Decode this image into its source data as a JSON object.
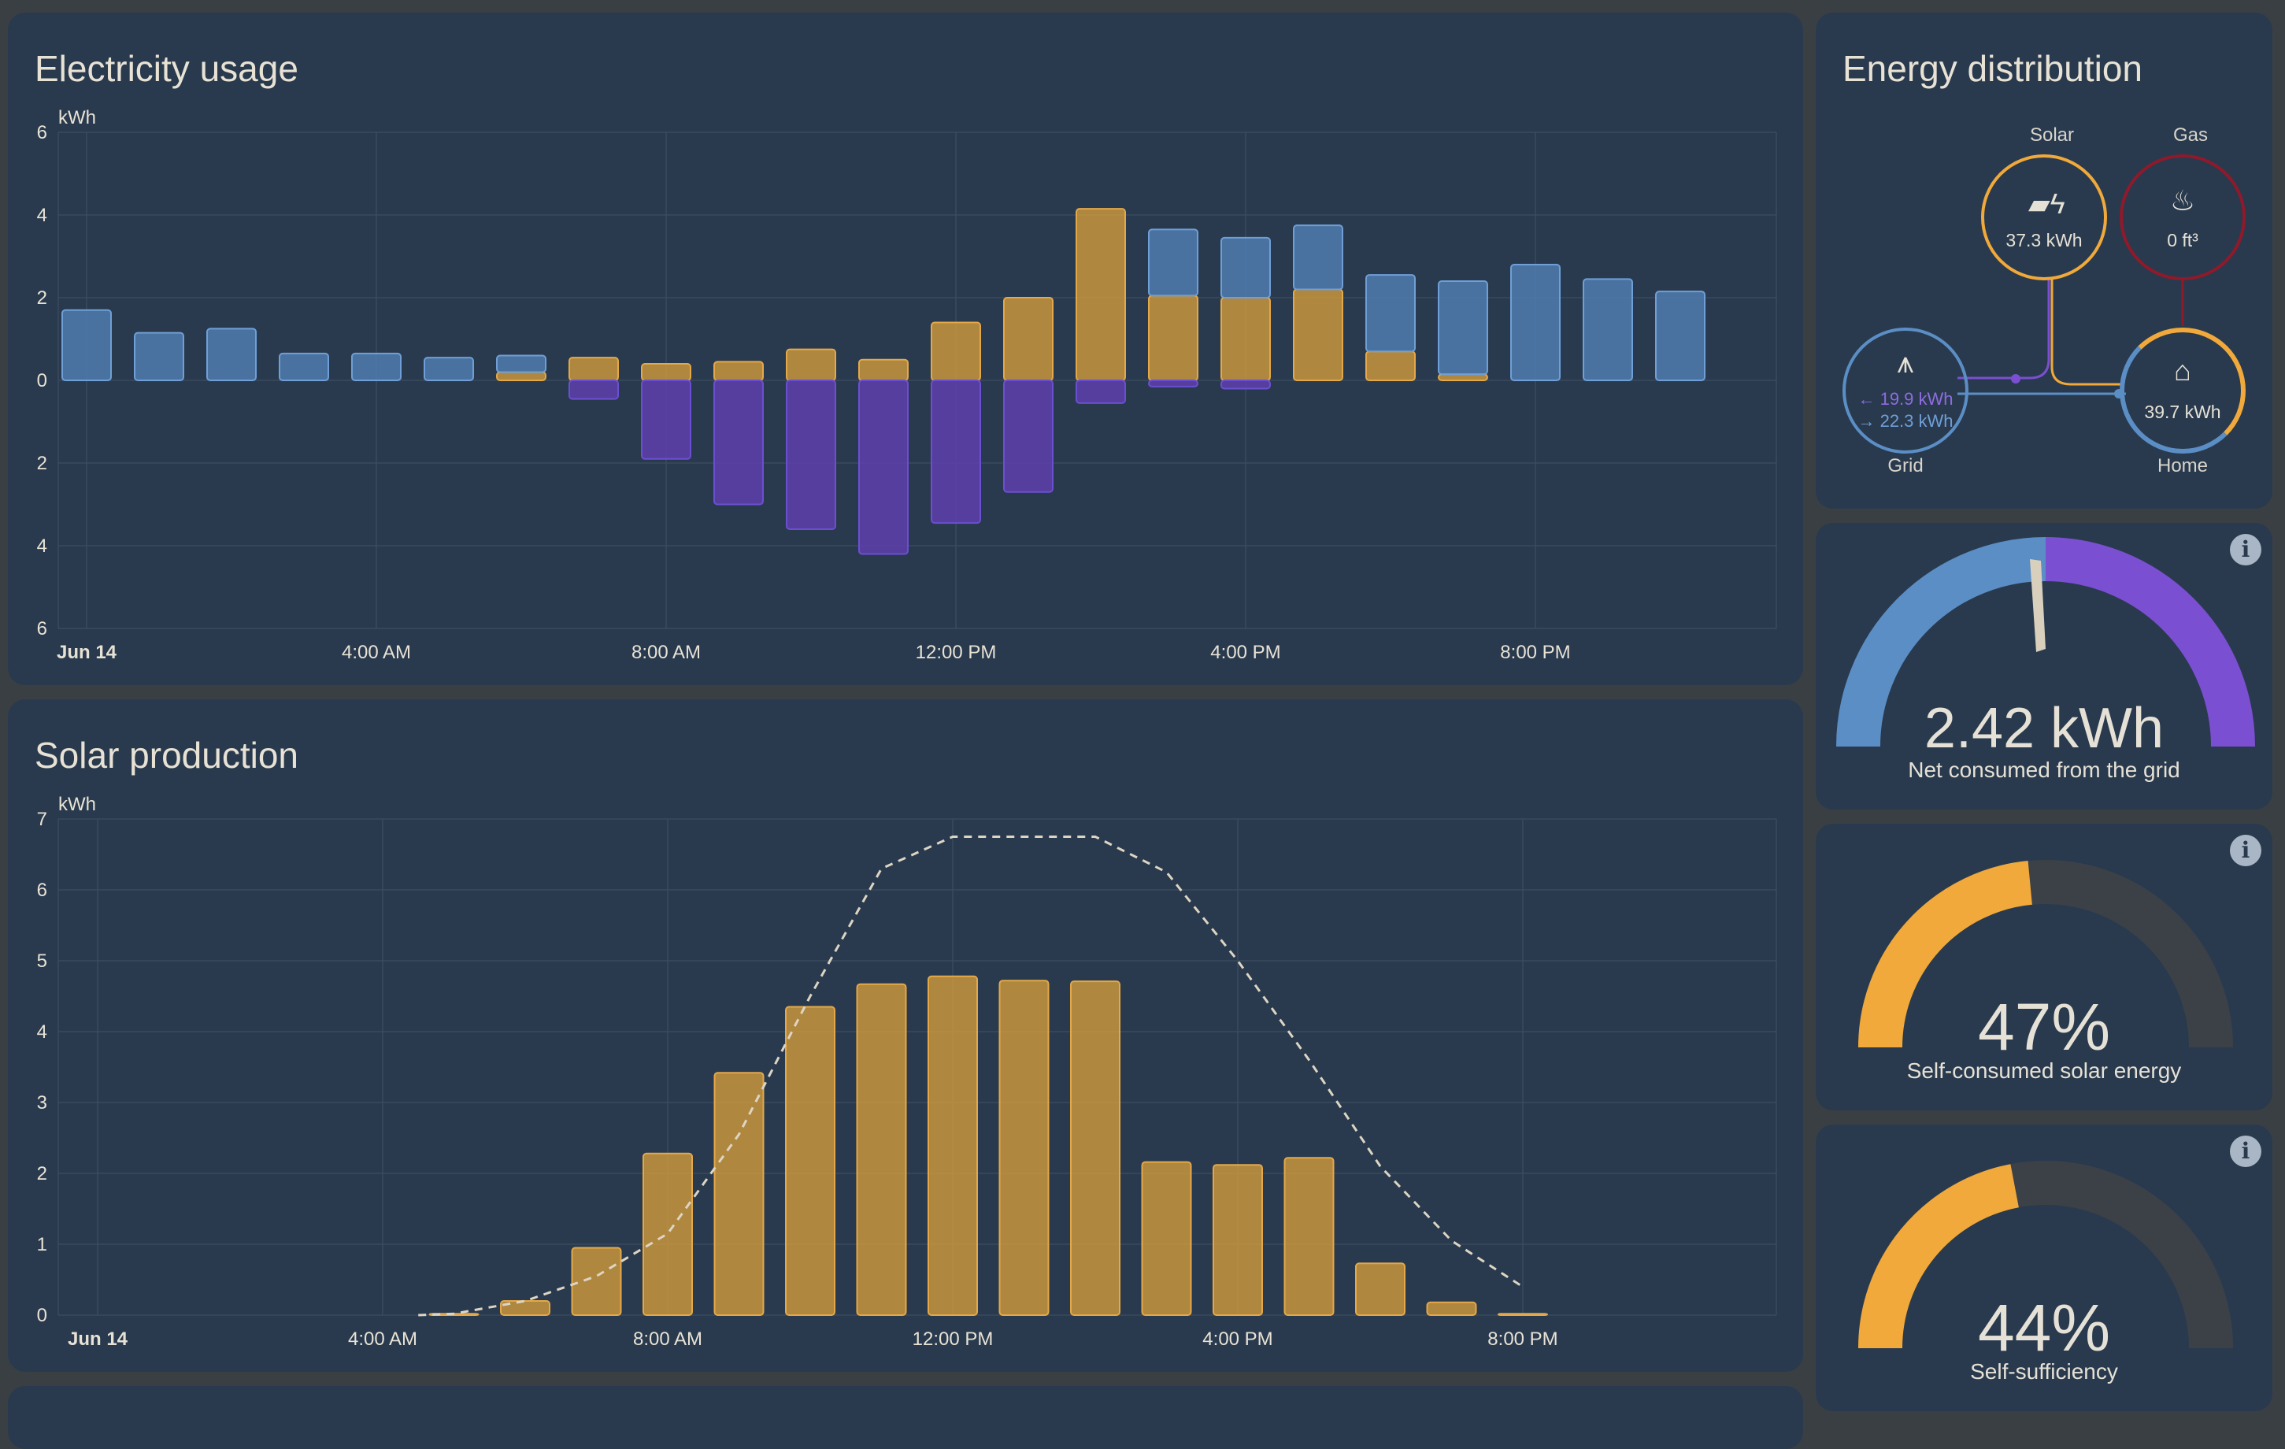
{
  "electricity": {
    "title": "Electricity usage",
    "unit": "kWh"
  },
  "solar": {
    "title": "Solar production",
    "unit": "kWh"
  },
  "distribution": {
    "title": "Energy distribution",
    "solar_label": "Solar",
    "solar_value": "37.3 kWh",
    "gas_label": "Gas",
    "gas_value": "0 ft³",
    "grid_label": "Grid",
    "grid_in": "← 19.9 kWh",
    "grid_out": "→ 22.3 kWh",
    "home_label": "Home",
    "home_value": "39.7 kWh",
    "icons": {
      "solar": "solar-panel-icon",
      "gas": "flame-icon",
      "grid": "transmission-tower-icon",
      "home": "home-icon"
    }
  },
  "gauges": [
    {
      "value": "2.42 kWh",
      "label": "Net consumed from the grid",
      "icon": "info-icon"
    },
    {
      "value": "47%",
      "label": "Self-consumed solar energy",
      "fraction": 0.47,
      "icon": "info-icon"
    },
    {
      "value": "44%",
      "label": "Self-sufficiency",
      "fraction": 0.44,
      "icon": "info-icon"
    }
  ],
  "colors": {
    "grid_consumption": "#4f7db0",
    "solar": "#c8953d",
    "return_to_grid": "#5b3fa8",
    "gauge_orange": "#f0a93a",
    "gauge_gray": "#3c4148",
    "gauge_purple": "#7b4fd1",
    "gauge_blue": "#5b8ec5",
    "gas_red": "#8e1a2b"
  },
  "chart_data": [
    {
      "type": "bar",
      "title": "Electricity usage",
      "ylabel": "kWh",
      "ylim": [
        -6,
        6
      ],
      "y_tick_labels": [
        "6",
        "4",
        "2",
        "0",
        "2",
        "4",
        "6"
      ],
      "x_tick_labels": [
        "Jun 14",
        "4:00 AM",
        "8:00 AM",
        "12:00 PM",
        "4:00 PM",
        "8:00 PM"
      ],
      "categories": [
        "0",
        "1",
        "2",
        "3",
        "4",
        "5",
        "6",
        "7",
        "8",
        "9",
        "10",
        "11",
        "12",
        "13",
        "14",
        "15",
        "16",
        "17",
        "18",
        "19",
        "20",
        "21",
        "22",
        "23"
      ],
      "series": [
        {
          "values": [
            1.7,
            1.15,
            1.25,
            0.65,
            0.65,
            0.55,
            0.4,
            0.0,
            0,
            0,
            0,
            0,
            0,
            0,
            0,
            1.6,
            1.45,
            1.55,
            1.85,
            2.25,
            2.8,
            2.45,
            2.15,
            0
          ]
        },
        {
          "values": [
            0,
            0,
            0,
            0,
            0,
            0,
            0.2,
            0.55,
            0.4,
            0.45,
            0.75,
            0.5,
            1.4,
            2.0,
            4.15,
            2.05,
            2.0,
            2.2,
            0.7,
            0.15,
            0,
            0,
            0,
            0
          ]
        },
        {
          "values": [
            0,
            0,
            0,
            0,
            0,
            0,
            0,
            -0.45,
            -1.9,
            -3.0,
            -3.6,
            -4.2,
            -3.45,
            -2.7,
            -0.55,
            -0.15,
            -0.2,
            0,
            0,
            0,
            0,
            0,
            0,
            0
          ]
        }
      ]
    },
    {
      "type": "bar",
      "title": "Solar production",
      "ylabel": "kWh",
      "ylim": [
        0,
        7
      ],
      "y_tick_labels": [
        "0",
        "1",
        "2",
        "3",
        "4",
        "5",
        "6",
        "7"
      ],
      "x_tick_labels": [
        "Jun 14",
        "4:00 AM",
        "8:00 AM",
        "12:00 PM",
        "4:00 PM",
        "8:00 PM"
      ],
      "categories": [
        "0",
        "1",
        "2",
        "3",
        "4",
        "5",
        "6",
        "7",
        "8",
        "9",
        "10",
        "11",
        "12",
        "13",
        "14",
        "15",
        "16",
        "17",
        "18",
        "19",
        "20",
        "21",
        "22",
        "23"
      ],
      "series": [
        {
          "values": [
            0,
            0,
            0,
            0,
            0,
            0.02,
            0.2,
            0.95,
            2.28,
            3.42,
            4.35,
            4.67,
            4.78,
            4.72,
            4.71,
            2.16,
            2.12,
            2.22,
            0.73,
            0.18,
            0.02,
            0,
            0,
            0
          ]
        },
        {
          "style": "dashed",
          "x": [
            4.5,
            5,
            6,
            7,
            8,
            9,
            10,
            11,
            12,
            13,
            14,
            15,
            16,
            17,
            18,
            19,
            20
          ],
          "values": [
            0,
            0.02,
            0.2,
            0.55,
            1.15,
            2.55,
            4.5,
            6.3,
            6.75,
            6.75,
            6.75,
            6.25,
            5.0,
            3.6,
            2.1,
            1.05,
            0.4
          ]
        }
      ]
    }
  ]
}
